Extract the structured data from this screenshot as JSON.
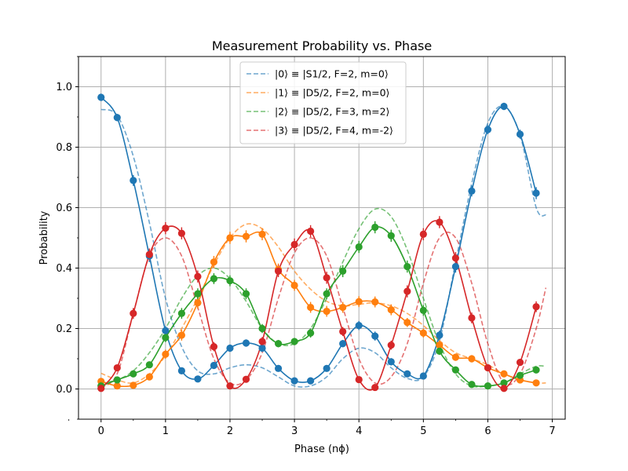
{
  "chart_data": {
    "type": "line",
    "title": "Measurement Probability vs. Phase",
    "xlabel": "Phase (nϕ)",
    "ylabel": "Probability",
    "xlim": [
      -0.35,
      7.2
    ],
    "ylim": [
      -0.1,
      1.1
    ],
    "xticks": [
      0,
      1,
      2,
      3,
      4,
      5,
      6,
      7
    ],
    "yticks": [
      0.0,
      0.2,
      0.4,
      0.6,
      0.8,
      1.0
    ],
    "xtick_labels": [
      "0",
      "1",
      "2",
      "3",
      "4",
      "5",
      "6",
      "7"
    ],
    "ytick_labels": [
      "0.0",
      "0.2",
      "0.4",
      "0.6",
      "0.8",
      "1.0"
    ],
    "grid": true,
    "legend_position": "top-center",
    "x": [
      0.0,
      0.25,
      0.5,
      0.75,
      1.0,
      1.25,
      1.5,
      1.75,
      2.0,
      2.25,
      2.5,
      2.75,
      3.0,
      3.25,
      3.5,
      3.75,
      4.0,
      4.25,
      4.5,
      4.75,
      5.0,
      5.25,
      5.5,
      5.75,
      6.0,
      6.25,
      6.5,
      6.75
    ],
    "series": [
      {
        "name": "|0⟩ ≡ |S1/2, F=2, m=0⟩",
        "color": "#1f77b4",
        "values": [
          0.965,
          0.898,
          0.69,
          0.44,
          0.193,
          0.06,
          0.033,
          0.078,
          0.135,
          0.152,
          0.135,
          0.068,
          0.027,
          0.027,
          0.068,
          0.15,
          0.21,
          0.175,
          0.09,
          0.05,
          0.043,
          0.178,
          0.405,
          0.655,
          0.858,
          0.935,
          0.843,
          0.648
        ],
        "errors": [
          0.012,
          0.012,
          0.018,
          0.02,
          0.015,
          0.01,
          0.008,
          0.01,
          0.012,
          0.012,
          0.012,
          0.01,
          0.008,
          0.008,
          0.01,
          0.012,
          0.015,
          0.015,
          0.012,
          0.01,
          0.01,
          0.015,
          0.02,
          0.018,
          0.015,
          0.012,
          0.015,
          0.02
        ],
        "fit": [
          0.925,
          0.905,
          0.77,
          0.55,
          0.3,
          0.14,
          0.06,
          0.05,
          0.07,
          0.08,
          0.07,
          0.04,
          0.01,
          0.01,
          0.04,
          0.1,
          0.135,
          0.12,
          0.07,
          0.035,
          0.04,
          0.16,
          0.42,
          0.68,
          0.88,
          0.935,
          0.84,
          0.6
        ]
      },
      {
        "name": "|1⟩ ≡ |D5/2, F=2, m=0⟩",
        "color": "#ff7f0e",
        "values": [
          0.025,
          0.01,
          0.012,
          0.04,
          0.115,
          0.178,
          0.285,
          0.42,
          0.5,
          0.505,
          0.512,
          0.395,
          0.343,
          0.27,
          0.257,
          0.27,
          0.289,
          0.288,
          0.262,
          0.22,
          0.185,
          0.145,
          0.105,
          0.1,
          0.07,
          0.05,
          0.03,
          0.02
        ],
        "errors": [
          0.008,
          0.006,
          0.006,
          0.01,
          0.015,
          0.018,
          0.02,
          0.02,
          0.02,
          0.02,
          0.02,
          0.02,
          0.018,
          0.018,
          0.018,
          0.018,
          0.018,
          0.018,
          0.018,
          0.015,
          0.015,
          0.015,
          0.012,
          0.012,
          0.01,
          0.01,
          0.008,
          0.006
        ],
        "fit": [
          0.052,
          0.03,
          0.02,
          0.05,
          0.11,
          0.2,
          0.3,
          0.41,
          0.5,
          0.545,
          0.53,
          0.47,
          0.39,
          0.33,
          0.29,
          0.275,
          0.28,
          0.285,
          0.275,
          0.25,
          0.21,
          0.16,
          0.12,
          0.1,
          0.08,
          0.05,
          0.03,
          0.02
        ]
      },
      {
        "name": "|2⟩ ≡ |D5/2, F=3, m=2⟩",
        "color": "#2ca02c",
        "values": [
          0.01,
          0.03,
          0.05,
          0.08,
          0.17,
          0.25,
          0.315,
          0.365,
          0.358,
          0.315,
          0.2,
          0.15,
          0.157,
          0.185,
          0.315,
          0.39,
          0.47,
          0.535,
          0.507,
          0.405,
          0.26,
          0.125,
          0.063,
          0.015,
          0.01,
          0.02,
          0.045,
          0.063
        ],
        "errors": [
          0.006,
          0.006,
          0.008,
          0.01,
          0.015,
          0.018,
          0.018,
          0.018,
          0.018,
          0.018,
          0.015,
          0.012,
          0.012,
          0.015,
          0.018,
          0.02,
          0.02,
          0.02,
          0.02,
          0.02,
          0.018,
          0.012,
          0.008,
          0.005,
          0.005,
          0.006,
          0.008,
          0.008
        ],
        "fit": [
          0.02,
          0.03,
          0.06,
          0.12,
          0.2,
          0.3,
          0.375,
          0.4,
          0.365,
          0.29,
          0.2,
          0.15,
          0.15,
          0.2,
          0.3,
          0.42,
          0.53,
          0.595,
          0.57,
          0.46,
          0.3,
          0.15,
          0.05,
          0.01,
          0.01,
          0.02,
          0.05,
          0.075
        ]
      },
      {
        "name": "|3⟩ ≡ |D5/2, F=4, m=-2⟩",
        "color": "#d62728",
        "values": [
          0.002,
          0.07,
          0.25,
          0.445,
          0.532,
          0.515,
          0.372,
          0.14,
          0.01,
          0.032,
          0.157,
          0.39,
          0.478,
          0.522,
          0.368,
          0.19,
          0.031,
          0.005,
          0.145,
          0.323,
          0.512,
          0.552,
          0.433,
          0.235,
          0.07,
          0.002,
          0.088,
          0.272
        ],
        "errors": [
          0.005,
          0.01,
          0.018,
          0.02,
          0.02,
          0.02,
          0.02,
          0.015,
          0.006,
          0.008,
          0.015,
          0.02,
          0.02,
          0.02,
          0.02,
          0.015,
          0.008,
          0.004,
          0.015,
          0.02,
          0.02,
          0.02,
          0.02,
          0.018,
          0.01,
          0.004,
          0.01,
          0.018
        ],
        "fit": [
          0.005,
          0.05,
          0.25,
          0.44,
          0.5,
          0.44,
          0.27,
          0.1,
          0.02,
          0.03,
          0.12,
          0.3,
          0.45,
          0.5,
          0.44,
          0.27,
          0.1,
          0.02,
          0.04,
          0.15,
          0.35,
          0.5,
          0.5,
          0.35,
          0.15,
          0.02,
          0.05,
          0.2
        ]
      }
    ],
    "fit_x_extended": 6.9,
    "fit_end_values": [
      0.575,
      0.02,
      0.075,
      0.335
    ]
  }
}
